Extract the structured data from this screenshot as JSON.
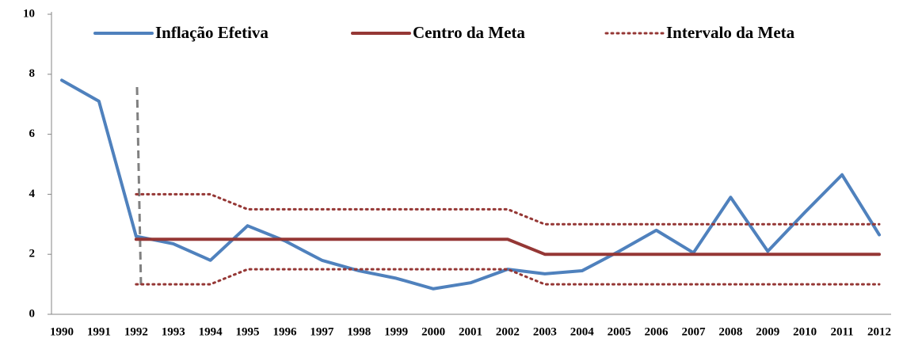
{
  "chart_data": {
    "type": "line",
    "x": [
      "1990",
      "1991",
      "1992",
      "1993",
      "1994",
      "1995",
      "1996",
      "1997",
      "1998",
      "1999",
      "2000",
      "2001",
      "2002",
      "2003",
      "2004",
      "2005",
      "2006",
      "2007",
      "2008",
      "2009",
      "2010",
      "2011",
      "2012"
    ],
    "series": [
      {
        "name": "Inflação Efetiva",
        "color": "#4f81bd",
        "style": "solid",
        "values": [
          7.8,
          7.1,
          2.6,
          2.35,
          1.8,
          2.95,
          2.45,
          1.8,
          1.45,
          1.2,
          0.85,
          1.05,
          1.5,
          1.35,
          1.45,
          2.1,
          2.8,
          2.05,
          3.9,
          2.1,
          3.4,
          4.65,
          2.65
        ]
      },
      {
        "name": "Centro da Meta",
        "color": "#953735",
        "style": "solid",
        "values": [
          null,
          null,
          2.5,
          2.5,
          2.5,
          2.5,
          2.5,
          2.5,
          2.5,
          2.5,
          2.5,
          2.5,
          2.5,
          2,
          2,
          2,
          2,
          2,
          2,
          2,
          2,
          2,
          2
        ]
      },
      {
        "name": "Intervalo da Meta",
        "color": "#953735",
        "style": "dotted",
        "values": [
          null,
          null,
          4,
          4,
          4,
          3.5,
          3.5,
          3.5,
          3.5,
          3.5,
          3.5,
          3.5,
          3.5,
          3,
          3,
          3,
          3,
          3,
          3,
          3,
          3,
          3,
          3
        ]
      },
      {
        "color": "#953735",
        "style": "dotted",
        "values": [
          null,
          null,
          1,
          1,
          1,
          1.5,
          1.5,
          1.5,
          1.5,
          1.5,
          1.5,
          1.5,
          1.5,
          1,
          1,
          1,
          1,
          1,
          1,
          1,
          1,
          1,
          1
        ]
      }
    ],
    "ylim": [
      0,
      10
    ],
    "yticks": [
      0,
      2,
      4,
      6,
      8,
      10
    ],
    "grid": false
  }
}
